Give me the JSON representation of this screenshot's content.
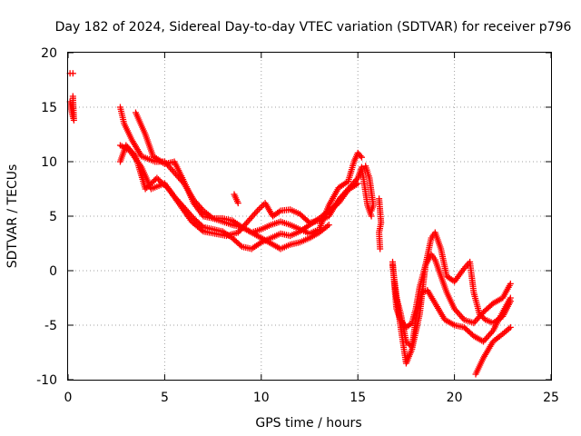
{
  "chart_data": {
    "type": "scatter",
    "title": "Day 182 of 2024, Sidereal Day-to-day VTEC variation (SDTVAR) for receiver p796",
    "xlabel": "GPS time / hours",
    "ylabel": "SDTVAR / TECUs",
    "xlim": [
      0,
      25
    ],
    "ylim": [
      -10,
      20
    ],
    "xticks": [
      0,
      5,
      10,
      15,
      20,
      25
    ],
    "yticks": [
      -10,
      -5,
      0,
      5,
      10,
      15,
      20
    ],
    "grid": true,
    "marker": "+",
    "color": "#ff0000",
    "tracks": [
      [
        [
          0.1,
          18.1
        ],
        [
          0.25,
          18.1
        ]
      ],
      [
        [
          0.1,
          15.5
        ],
        [
          0.2,
          14.5
        ],
        [
          0.3,
          13.8
        ],
        [
          0.25,
          16
        ]
      ],
      [
        [
          2.7,
          15
        ],
        [
          2.9,
          13.5
        ],
        [
          3.3,
          12
        ],
        [
          3.8,
          10.5
        ],
        [
          4.5,
          10
        ],
        [
          5.0,
          10
        ],
        [
          5.5,
          9
        ],
        [
          6.0,
          8
        ],
        [
          6.5,
          6.5
        ],
        [
          7.0,
          5.5
        ],
        [
          7.5,
          4.8
        ],
        [
          8.0,
          4.5
        ],
        [
          8.5,
          4.2
        ],
        [
          9.0,
          4.0
        ],
        [
          9.5,
          3.5
        ],
        [
          10.0,
          3.0
        ],
        [
          10.5,
          2.5
        ],
        [
          11.0,
          2.0
        ],
        [
          11.5,
          2.4
        ],
        [
          12.0,
          2.6
        ],
        [
          12.5,
          3.0
        ],
        [
          13.0,
          3.5
        ],
        [
          13.5,
          4.2
        ]
      ],
      [
        [
          2.7,
          11.5
        ],
        [
          3.2,
          11
        ],
        [
          3.8,
          9.5
        ],
        [
          4.3,
          7.5
        ],
        [
          5.0,
          8
        ],
        [
          5.5,
          6.8
        ],
        [
          6.0,
          5.8
        ],
        [
          6.5,
          4.8
        ],
        [
          7.0,
          4.0
        ],
        [
          7.5,
          3.8
        ],
        [
          8.0,
          3.6
        ],
        [
          8.5,
          3.0
        ],
        [
          9.0,
          2.2
        ],
        [
          9.5,
          2.0
        ],
        [
          10.0,
          2.6
        ],
        [
          10.5,
          3.0
        ],
        [
          11.0,
          3.4
        ],
        [
          11.5,
          3.2
        ],
        [
          12.0,
          3.6
        ],
        [
          12.5,
          4.2
        ],
        [
          13.0,
          4.8
        ],
        [
          13.5,
          5.5
        ],
        [
          14.0,
          6.2
        ],
        [
          14.5,
          7.4
        ],
        [
          15.0,
          8.0
        ]
      ],
      [
        [
          2.7,
          10
        ],
        [
          3.0,
          11.5
        ],
        [
          3.5,
          10.5
        ],
        [
          4.0,
          7.5
        ],
        [
          4.6,
          8.5
        ],
        [
          5.2,
          7.5
        ],
        [
          5.8,
          6.0
        ],
        [
          6.4,
          4.5
        ],
        [
          7.0,
          3.6
        ],
        [
          7.6,
          3.4
        ],
        [
          8.2,
          3.2
        ],
        [
          8.8,
          3.5
        ],
        [
          9.3,
          4.5
        ],
        [
          9.8,
          5.5
        ],
        [
          10.2,
          6.2
        ],
        [
          10.6,
          5.0
        ],
        [
          11.0,
          5.5
        ],
        [
          11.5,
          5.6
        ],
        [
          12.0,
          5.2
        ],
        [
          12.5,
          4.4
        ],
        [
          13.0,
          4.6
        ],
        [
          13.5,
          5.0
        ],
        [
          14.0,
          6.5
        ],
        [
          14.5,
          7.5
        ],
        [
          15.0,
          8.5
        ],
        [
          15.2,
          9.5
        ],
        [
          15.5,
          6.0
        ],
        [
          15.7,
          5.0
        ]
      ],
      [
        [
          3.5,
          14.5
        ],
        [
          4.0,
          12.5
        ],
        [
          4.4,
          10.5
        ],
        [
          5.0,
          9.8
        ],
        [
          5.5,
          10
        ],
        [
          6.0,
          8.2
        ],
        [
          6.5,
          6.2
        ],
        [
          7.0,
          5.0
        ],
        [
          7.5,
          4.8
        ],
        [
          8.0,
          4.8
        ],
        [
          8.5,
          4.6
        ],
        [
          9.0,
          4.0
        ],
        [
          9.5,
          3.5
        ],
        [
          10.0,
          3.8
        ],
        [
          10.5,
          4.2
        ],
        [
          11.0,
          4.5
        ],
        [
          11.5,
          4.2
        ],
        [
          12.0,
          3.8
        ],
        [
          12.5,
          3.4
        ],
        [
          13.0,
          3.8
        ],
        [
          13.5,
          6.0
        ],
        [
          14.0,
          7.6
        ],
        [
          14.5,
          8.2
        ],
        [
          14.8,
          10.0
        ],
        [
          15.0,
          10.8
        ],
        [
          15.2,
          10.4
        ]
      ],
      [
        [
          8.6,
          7.0
        ],
        [
          8.8,
          6.2
        ]
      ],
      [
        [
          15.4,
          9.6
        ],
        [
          15.6,
          8.5
        ],
        [
          15.8,
          6.0
        ],
        [
          15.7,
          5.5
        ]
      ],
      [
        [
          16.1,
          6.6
        ],
        [
          16.15,
          5.5
        ],
        [
          16.2,
          4.4
        ],
        [
          16.1,
          3.5
        ],
        [
          16.15,
          2.0
        ]
      ],
      [
        [
          16.8,
          0.8
        ],
        [
          16.9,
          -1.5
        ],
        [
          17.0,
          -3.5
        ],
        [
          17.2,
          -4.5
        ],
        [
          17.5,
          -5.2
        ],
        [
          17.8,
          -4.8
        ],
        [
          18.0,
          -3.5
        ],
        [
          18.2,
          -1.5
        ],
        [
          18.5,
          0.5
        ],
        [
          18.8,
          1.5
        ],
        [
          19.0,
          1.0
        ],
        [
          19.3,
          -0.5
        ],
        [
          19.6,
          -2.0
        ],
        [
          20.0,
          -3.5
        ],
        [
          20.5,
          -4.5
        ],
        [
          21.0,
          -4.8
        ],
        [
          21.5,
          -3.8
        ],
        [
          22.0,
          -3.0
        ],
        [
          22.5,
          -2.5
        ],
        [
          22.9,
          -1.2
        ]
      ],
      [
        [
          16.8,
          0.5
        ],
        [
          17.0,
          -2.5
        ],
        [
          17.2,
          -3.8
        ],
        [
          17.5,
          -6.5
        ],
        [
          17.8,
          -7.0
        ],
        [
          18.0,
          -4.5
        ],
        [
          18.3,
          -2.0
        ],
        [
          18.6,
          -1.8
        ],
        [
          19.0,
          -3.0
        ],
        [
          19.5,
          -4.5
        ],
        [
          20.0,
          -5.0
        ],
        [
          20.5,
          -5.2
        ],
        [
          21.0,
          -6.0
        ],
        [
          21.5,
          -6.5
        ],
        [
          22.0,
          -5.5
        ],
        [
          22.5,
          -3.8
        ],
        [
          22.9,
          -2.5
        ]
      ],
      [
        [
          16.9,
          -1.0
        ],
        [
          17.2,
          -5.0
        ],
        [
          17.5,
          -8.5
        ],
        [
          17.8,
          -7.2
        ],
        [
          18.2,
          -4.0
        ],
        [
          18.5,
          0.5
        ],
        [
          18.8,
          3.0
        ],
        [
          19.0,
          3.5
        ],
        [
          19.3,
          2.0
        ],
        [
          19.6,
          -0.5
        ],
        [
          20.0,
          -1.0
        ],
        [
          20.5,
          0.2
        ],
        [
          20.8,
          0.8
        ],
        [
          21.0,
          -2.0
        ],
        [
          21.3,
          -4.0
        ],
        [
          21.6,
          -4.5
        ],
        [
          22.0,
          -4.8
        ],
        [
          22.5,
          -4.2
        ],
        [
          22.9,
          -2.8
        ]
      ],
      [
        [
          21.1,
          -9.5
        ],
        [
          21.5,
          -8.0
        ],
        [
          22.0,
          -6.5
        ],
        [
          22.5,
          -5.8
        ],
        [
          22.9,
          -5.2
        ]
      ]
    ]
  }
}
